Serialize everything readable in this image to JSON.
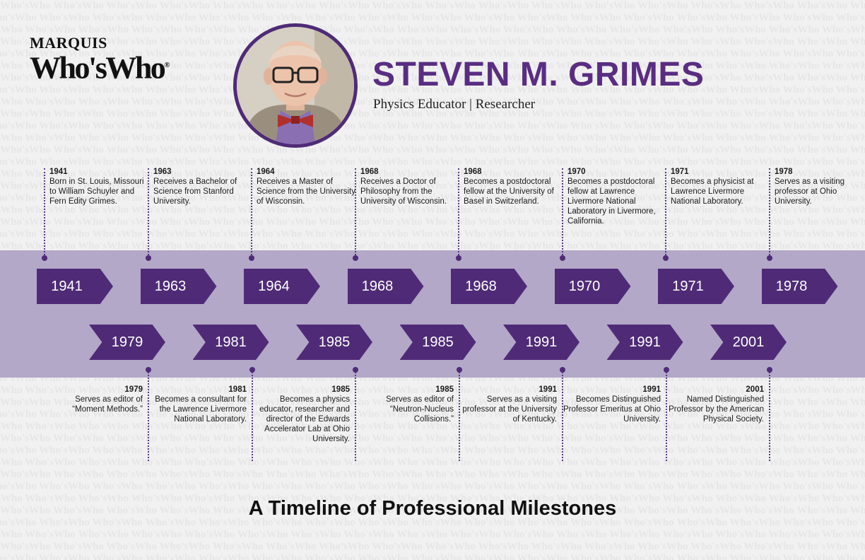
{
  "logo": {
    "top": "MARQUIS",
    "bottom": "Who'sWho",
    "reg": "®"
  },
  "person": {
    "name": "STEVEN M. GRIMES",
    "subtitle": "Physics Educator | Researcher"
  },
  "heading": "A Timeline of Professional Milestones",
  "colors": {
    "accent": "#4f2b77",
    "band": "#b3a8c8",
    "name": "#5a2d83"
  },
  "events_top": [
    {
      "year": "1941",
      "text": "Born in St. Louis, Missouri to William Schuyler and Fern Edity Grimes."
    },
    {
      "year": "1963",
      "text": "Receives a Bachelor of Science from Stanford University."
    },
    {
      "year": "1964",
      "text": "Receives a Master of Science from the University of Wisconsin."
    },
    {
      "year": "1968",
      "text": "Receives a Doctor of Philosophy from the University of Wisconsin."
    },
    {
      "year": "1968",
      "text": "Becomes a postdoctoral fellow at the University of Basel in Switzerland."
    },
    {
      "year": "1970",
      "text": "Becomes a postdoctoral fellow at Lawrence Livermore National Laboratory in Livermore, California."
    },
    {
      "year": "1971",
      "text": "Becomes a physicist at Lawrence Livermore National Laboratory."
    },
    {
      "year": "1978",
      "text": "Serves as a visiting professor at Ohio University."
    }
  ],
  "events_bottom": [
    {
      "year": "1979",
      "text": "Serves as editor of “Moment Methods.”"
    },
    {
      "year": "1981",
      "text": "Becomes a consultant for the Lawrence Livermore National Laboratory."
    },
    {
      "year": "1985",
      "text": "Becomes a physics educator, researcher and director of the Edwards Accelerator Lab at Ohio University."
    },
    {
      "year": "1985",
      "text": "Serves as editor of “Neutron-Nucleus Collisions.”"
    },
    {
      "year": "1991",
      "text": "Serves as a visiting professor at the University of Kentucky."
    },
    {
      "year": "1991",
      "text": "Becomes Distinguished Professor Emeritus at Ohio University."
    },
    {
      "year": "2001",
      "text": "Named Distinguished Professor by the American Physical Society."
    }
  ]
}
